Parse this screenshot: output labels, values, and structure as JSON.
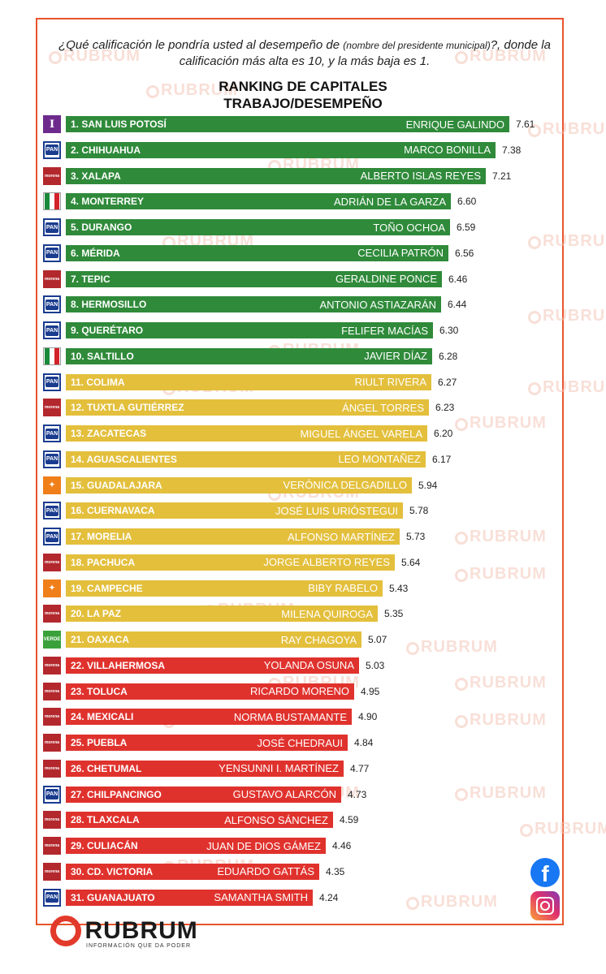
{
  "question": {
    "part1": "¿Qué calificación le pondría usted al desempeño de",
    "small": "(nombre del presidente municipal)",
    "part2": "?, donde la calificación más alta es 10, y la más baja es 1."
  },
  "watermark_text": "RUBRUM",
  "colors": {
    "green": "#2f8a3a",
    "yellow": "#e3bf3c",
    "red": "#e0322d",
    "frame": "#e8542c"
  },
  "chart_data": {
    "type": "bar",
    "title": "RANKING DE CAPITALES",
    "subtitle": "TRABAJO/DESEMPEÑO",
    "xlabel": "",
    "ylabel": "",
    "xlim": [
      0,
      7.61
    ],
    "grid": false,
    "rows": [
      {
        "city": "1. SAN LUIS POTOSÍ",
        "name": "ENRIQUE GALINDO",
        "value": 7.61,
        "value_label": "7.61",
        "party": "independent-icon",
        "party_text": "I",
        "band": "green"
      },
      {
        "city": "2. CHIHUAHUA",
        "name": "MARCO BONILLA",
        "value": 7.38,
        "value_label": "7.38",
        "party": "pan-logo-icon",
        "party_text": "PAN",
        "band": "green"
      },
      {
        "city": "3. XALAPA",
        "name": "ALBERTO ISLAS REYES",
        "value": 7.21,
        "value_label": "7.21",
        "party": "morena-logo-icon",
        "party_text": "morena",
        "band": "green"
      },
      {
        "city": "4. MONTERREY",
        "name": "ADRIÁN DE LA GARZA",
        "value": 6.6,
        "value_label": "6.60",
        "party": "pri-logo-icon",
        "party_text": "PRI",
        "band": "green"
      },
      {
        "city": "5. DURANGO",
        "name": "TOÑO OCHOA",
        "value": 6.59,
        "value_label": "6.59",
        "party": "pan-logo-icon",
        "party_text": "PAN",
        "band": "green"
      },
      {
        "city": "6. MÉRIDA",
        "name": "CECILIA PATRÓN",
        "value": 6.56,
        "value_label": "6.56",
        "party": "pan-logo-icon",
        "party_text": "PAN",
        "band": "green"
      },
      {
        "city": "7. TEPIC",
        "name": "GERALDINE PONCE",
        "value": 6.46,
        "value_label": "6.46",
        "party": "morena-logo-icon",
        "party_text": "morena",
        "band": "green"
      },
      {
        "city": "8. HERMOSILLO",
        "name": "ANTONIO ASTIAZARÁN",
        "value": 6.44,
        "value_label": "6.44",
        "party": "pan-logo-icon",
        "party_text": "PAN",
        "band": "green"
      },
      {
        "city": "9. QUERÉTARO",
        "name": "FELIFER MACÍAS",
        "value": 6.3,
        "value_label": "6.30",
        "party": "pan-logo-icon",
        "party_text": "PAN",
        "band": "green"
      },
      {
        "city": "10. SALTILLO",
        "name": "JAVIER DÍAZ",
        "value": 6.28,
        "value_label": "6.28",
        "party": "pri-logo-icon",
        "party_text": "PRI",
        "band": "green"
      },
      {
        "city": "11. COLIMA",
        "name": "RIULT RIVERA",
        "value": 6.27,
        "value_label": "6.27",
        "party": "pan-logo-icon",
        "party_text": "PAN",
        "band": "yellow"
      },
      {
        "city": "12. TUXTLA GUTIÉRREZ",
        "name": "ÁNGEL TORRES",
        "value": 6.23,
        "value_label": "6.23",
        "party": "morena-logo-icon",
        "party_text": "morena",
        "band": "yellow"
      },
      {
        "city": "13. ZACATECAS",
        "name": "MIGUEL ÁNGEL VARELA",
        "value": 6.2,
        "value_label": "6.20",
        "party": "pan-logo-icon",
        "party_text": "PAN",
        "band": "yellow"
      },
      {
        "city": "14. AGUASCALIENTES",
        "name": "LEO MONTAÑEZ",
        "value": 6.17,
        "value_label": "6.17",
        "party": "pan-logo-icon",
        "party_text": "PAN",
        "band": "yellow"
      },
      {
        "city": "15. GUADALAJARA",
        "name": "VERÓNICA DELGADILLO",
        "value": 5.94,
        "value_label": "5.94",
        "party": "movimiento-ciudadano-logo-icon",
        "party_text": "MC",
        "band": "yellow"
      },
      {
        "city": "16. CUERNAVACA",
        "name": "JOSÉ LUIS URIÓSTEGUI",
        "value": 5.78,
        "value_label": "5.78",
        "party": "pan-logo-icon",
        "party_text": "PAN",
        "band": "yellow"
      },
      {
        "city": "17. MORELIA",
        "name": "ALFONSO MARTÍNEZ",
        "value": 5.73,
        "value_label": "5.73",
        "party": "pan-logo-icon",
        "party_text": "PAN",
        "band": "yellow"
      },
      {
        "city": "18. PACHUCA",
        "name": "JORGE ALBERTO REYES",
        "value": 5.64,
        "value_label": "5.64",
        "party": "morena-logo-icon",
        "party_text": "morena",
        "band": "yellow"
      },
      {
        "city": "19. CAMPECHE",
        "name": "BIBY RABELO",
        "value": 5.43,
        "value_label": "5.43",
        "party": "movimiento-ciudadano-logo-icon",
        "party_text": "MC",
        "band": "yellow"
      },
      {
        "city": "20. LA PAZ",
        "name": "MILENA QUIROGA",
        "value": 5.35,
        "value_label": "5.35",
        "party": "morena-logo-icon",
        "party_text": "morena",
        "band": "yellow"
      },
      {
        "city": "21. OAXACA",
        "name": "RAY CHAGOYA",
        "value": 5.07,
        "value_label": "5.07",
        "party": "verde-logo-icon",
        "party_text": "VERDE",
        "band": "yellow"
      },
      {
        "city": "22. VILLAHERMOSA",
        "name": "YOLANDA OSUNA",
        "value": 5.03,
        "value_label": "5.03",
        "party": "morena-logo-icon",
        "party_text": "morena",
        "band": "red"
      },
      {
        "city": "23. TOLUCA",
        "name": "RICARDO MORENO",
        "value": 4.95,
        "value_label": "4.95",
        "party": "morena-logo-icon",
        "party_text": "morena",
        "band": "red"
      },
      {
        "city": "24. MEXICALI",
        "name": "NORMA BUSTAMANTE",
        "value": 4.9,
        "value_label": "4.90",
        "party": "morena-logo-icon",
        "party_text": "morena",
        "band": "red"
      },
      {
        "city": "25. PUEBLA",
        "name": "JOSÉ CHEDRAUI",
        "value": 4.84,
        "value_label": "4.84",
        "party": "morena-logo-icon",
        "party_text": "morena",
        "band": "red"
      },
      {
        "city": "26. CHETUMAL",
        "name": "YENSUNNI I. MARTÍNEZ",
        "value": 4.77,
        "value_label": "4.77",
        "party": "morena-logo-icon",
        "party_text": "morena",
        "band": "red"
      },
      {
        "city": "27. CHILPANCINGO",
        "name": "GUSTAVO ALARCÓN",
        "value": 4.73,
        "value_label": "4.73",
        "party": "pan-logo-icon",
        "party_text": "PAN",
        "band": "red"
      },
      {
        "city": "28. TLAXCALA",
        "name": "ALFONSO SÁNCHEZ",
        "value": 4.59,
        "value_label": "4.59",
        "party": "morena-logo-icon",
        "party_text": "morena",
        "band": "red"
      },
      {
        "city": "29. CULIACÁN",
        "name": "JUAN DE DIOS GÁMEZ",
        "value": 4.46,
        "value_label": "4.46",
        "party": "morena-logo-icon",
        "party_text": "morena",
        "band": "red"
      },
      {
        "city": "30. CD. VICTORIA",
        "name": "EDUARDO GATTÁS",
        "value": 4.35,
        "value_label": "4.35",
        "party": "morena-logo-icon",
        "party_text": "morena",
        "band": "red"
      },
      {
        "city": "31. GUANAJUATO",
        "name": "SAMANTHA SMITH",
        "value": 4.24,
        "value_label": "4.24",
        "party": "pan-logo-icon",
        "party_text": "PAN",
        "band": "red"
      }
    ]
  },
  "footer": {
    "brand": "RUBRUM",
    "tagline": "INFORMACIÓN QUE DA PODER",
    "social": [
      {
        "icon": "facebook-icon",
        "glyph": "f"
      },
      {
        "icon": "instagram-icon"
      }
    ]
  }
}
